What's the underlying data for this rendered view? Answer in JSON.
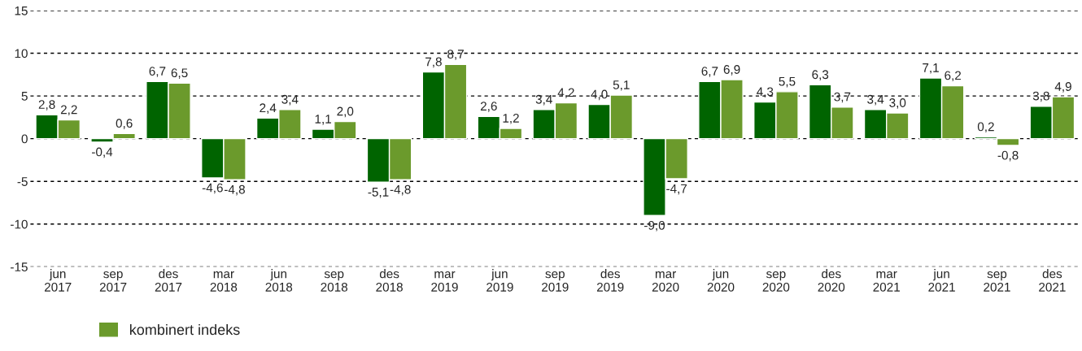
{
  "chart_data": {
    "type": "bar",
    "categories": [
      "jun\n2017",
      "sep\n2017",
      "des\n2017",
      "mar\n2018",
      "jun\n2018",
      "sep\n2018",
      "des\n2018",
      "mar\n2019",
      "jun\n2019",
      "sep\n2019",
      "des\n2019",
      "mar\n2020",
      "jun\n2020",
      "sep\n2020",
      "des\n2020",
      "mar\n2021",
      "jun\n2021",
      "sep\n2021",
      "des\n2021"
    ],
    "series": [
      {
        "color": "#006400",
        "values": [
          2.8,
          -0.4,
          6.7,
          -4.6,
          2.4,
          1.1,
          -5.1,
          7.8,
          2.6,
          3.4,
          4.0,
          -9.0,
          6.7,
          4.3,
          6.3,
          3.4,
          7.1,
          0.2,
          3.8
        ],
        "value_labels": [
          "2,8",
          "-0,4",
          "6,7",
          "-4,6",
          "2,4",
          "1,1",
          "-5,1",
          "7,8",
          "2,6",
          "3,4",
          "4,0",
          "-9,0",
          "6,7",
          "4,3",
          "6,3",
          "3,4",
          "7,1",
          "0,2",
          "3,8"
        ]
      },
      {
        "name": "kombinert indeks",
        "color": "#6b9a2c",
        "values": [
          2.2,
          0.6,
          6.5,
          -4.8,
          3.4,
          2.0,
          -4.8,
          8.7,
          1.2,
          4.2,
          5.1,
          -4.7,
          6.9,
          5.5,
          3.7,
          3.0,
          6.2,
          -0.8,
          4.9
        ],
        "value_labels": [
          "2,2",
          "0,6",
          "6,5",
          "-4,8",
          "3,4",
          "2,0",
          "-4,8",
          "8,7",
          "1,2",
          "4,2",
          "5,1",
          "-4,7",
          "6,9",
          "5,5",
          "3,7",
          "3,0",
          "6,2",
          "-0,8",
          "4,9"
        ]
      }
    ],
    "ylim": [
      -15,
      15
    ],
    "yticks": [
      {
        "value": -15,
        "label": "-15"
      },
      {
        "value": -10,
        "label": "-10"
      },
      {
        "value": -5,
        "label": "-5"
      },
      0,
      5,
      10,
      15
    ],
    "grid": "y",
    "legend": "bottom left"
  }
}
